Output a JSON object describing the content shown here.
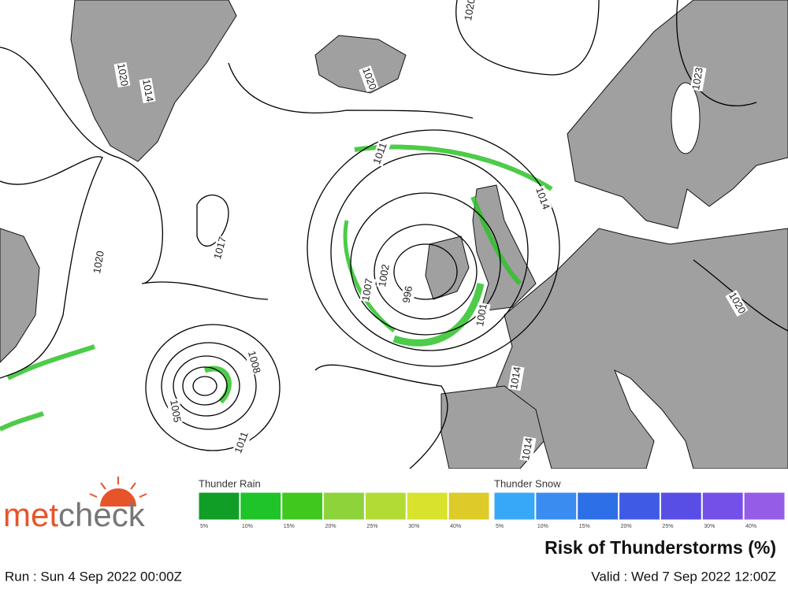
{
  "logo": {
    "part_a": "met",
    "part_b": "check"
  },
  "legend": {
    "rain": {
      "title": "Thunder Rain",
      "items": [
        {
          "label": "5%",
          "color": "#109e26"
        },
        {
          "label": "10%",
          "color": "#1ec428"
        },
        {
          "label": "15%",
          "color": "#40c81e"
        },
        {
          "label": "20%",
          "color": "#8cd43a"
        },
        {
          "label": "25%",
          "color": "#b2dc34"
        },
        {
          "label": "30%",
          "color": "#d9e22c"
        },
        {
          "label": "40%",
          "color": "#dccb28"
        }
      ]
    },
    "snow": {
      "title": "Thunder Snow",
      "items": [
        {
          "label": "5%",
          "color": "#36a8f6"
        },
        {
          "label": "10%",
          "color": "#3a8cf0"
        },
        {
          "label": "15%",
          "color": "#2d6fe6"
        },
        {
          "label": "20%",
          "color": "#3f5be6"
        },
        {
          "label": "25%",
          "color": "#584ee6"
        },
        {
          "label": "30%",
          "color": "#7450e8"
        },
        {
          "label": "40%",
          "color": "#955ce8"
        }
      ]
    }
  },
  "title": "Risk of Thunderstorms (%)",
  "run": "Run : Sun 4 Sep 2022 00:00Z",
  "valid": "Valid : Wed 7 Sep 2022 12:00Z",
  "map": {
    "isobar_labels": [
      "1020",
      "1014",
      "1020",
      "1020",
      "1023",
      "1011",
      "1014",
      "1017",
      "1020",
      "1007",
      "1002",
      "996",
      "1001",
      "1014",
      "1014",
      "1020",
      "1008",
      "1005",
      "1011"
    ]
  }
}
